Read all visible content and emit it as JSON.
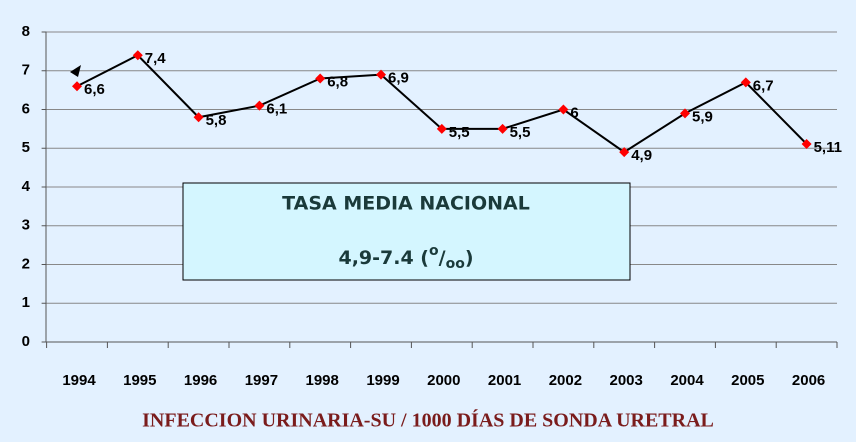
{
  "chart_data": {
    "type": "line",
    "categories": [
      "1994",
      "1995",
      "1996",
      "1997",
      "1998",
      "1999",
      "2000",
      "2001",
      "2002",
      "2003",
      "2004",
      "2005",
      "2006"
    ],
    "values": [
      6.6,
      7.4,
      5.8,
      6.1,
      6.8,
      6.9,
      5.5,
      5.5,
      6,
      4.9,
      5.9,
      6.7,
      5.11
    ],
    "value_labels": [
      "6,6",
      "7,4",
      "5,8",
      "6,1",
      "6,8",
      "6,9",
      "5,5",
      "5,5",
      "6",
      "4,9",
      "5,9",
      "6,7",
      "5,11"
    ],
    "color": "#000000",
    "marker_color": "#ff0000",
    "ylim": [
      0,
      8
    ],
    "yticks": [
      0,
      1,
      2,
      3,
      4,
      5,
      6,
      7,
      8
    ],
    "grid": true,
    "annotation": {
      "title": "TASA MEDIA NACIONAL",
      "range_parts": [
        "4,9-7.4 (",
        "o",
        "/",
        "oo",
        ")"
      ]
    },
    "x_label": "INFECCION URINARIA-SU / 1000 DÍAS DE SONDA URETRAL"
  }
}
